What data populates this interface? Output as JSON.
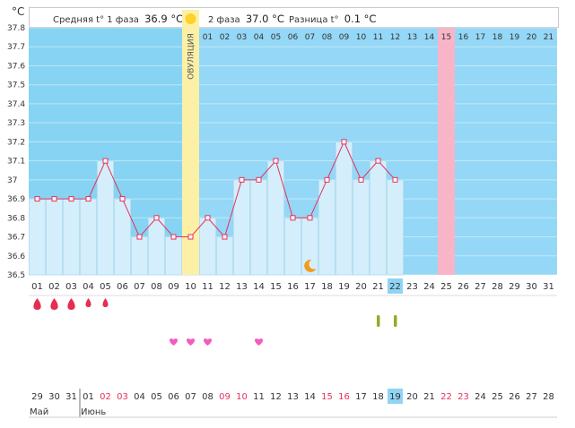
{
  "header": {
    "unit": "°C",
    "phase1_label": "Средняя t° 1 фаза",
    "phase1_value": "36.9 °C",
    "phase2_label": "2 фаза",
    "phase2_value": "37.0 °C",
    "diff_label": "Разница t°",
    "diff_value": "0.1 °C"
  },
  "chart_data": {
    "type": "line",
    "title": "",
    "ylabel": "°C",
    "ylim": [
      36.5,
      37.8
    ],
    "y_ticks": [
      "37.8",
      "37.7",
      "37.6",
      "37.5",
      "37.4",
      "37.3",
      "37.2",
      "37.1",
      "37",
      "36.9",
      "36.8",
      "36.7",
      "36.6",
      "36.5"
    ],
    "cycle_days": [
      "01",
      "02",
      "03",
      "04",
      "05",
      "06",
      "07",
      "08",
      "09",
      "10",
      "11",
      "12",
      "13",
      "14",
      "15",
      "16",
      "17",
      "18",
      "19",
      "20",
      "21",
      "22",
      "23",
      "24",
      "25",
      "26",
      "27",
      "28",
      "29",
      "30",
      "31"
    ],
    "top_days": [
      "01",
      "02",
      "03",
      "04",
      "05",
      "06",
      "07",
      "08",
      "09",
      "10",
      "11",
      "12",
      "13",
      "14",
      "15",
      "16",
      "17",
      "18",
      "19",
      "20",
      "21"
    ],
    "phase2_start_index": 10,
    "series": [
      {
        "name": "temperature",
        "values": [
          36.9,
          36.9,
          36.9,
          36.9,
          37.1,
          36.9,
          36.7,
          36.8,
          36.7,
          36.7,
          36.8,
          36.7,
          37.0,
          37.0,
          37.1,
          36.8,
          36.8,
          37.0,
          37.2,
          37.0,
          37.1,
          37.0
        ]
      }
    ],
    "ovulation_index": 9,
    "ovulation_label": "ОВУЛЯЦИЯ",
    "highlight_top_day_index": 14,
    "current_day_index": 21,
    "moon_index": 16,
    "menstruation": [
      {
        "index": 0,
        "size": "large"
      },
      {
        "index": 1,
        "size": "large"
      },
      {
        "index": 2,
        "size": "large"
      },
      {
        "index": 3,
        "size": "small"
      },
      {
        "index": 4,
        "size": "small"
      }
    ],
    "intercourse_indices": [
      8,
      9,
      10,
      13
    ],
    "test_indices": [
      20,
      21
    ]
  },
  "calendar": {
    "dates": [
      "29",
      "30",
      "31",
      "01",
      "02",
      "03",
      "04",
      "05",
      "06",
      "07",
      "08",
      "09",
      "10",
      "11",
      "12",
      "13",
      "14",
      "15",
      "16",
      "17",
      "18",
      "19",
      "20",
      "21",
      "22",
      "23",
      "24",
      "25",
      "26",
      "27",
      "28"
    ],
    "red_indices": [
      4,
      5,
      11,
      12,
      17,
      18,
      24,
      25
    ],
    "current_date_index": 21,
    "month_labels": [
      {
        "text": "Май",
        "index": 0
      },
      {
        "text": "Июнь",
        "index": 3
      }
    ]
  },
  "colors": {
    "phase1_bg": "#87d3f3",
    "phase2_bg": "#94d7f6",
    "bar_fill": "#d4eefb",
    "bar_stroke": "#b7dff1",
    "line": "#e5315d",
    "ovulation": "#fcf0a6",
    "highlight": "#f9b5c8",
    "label_blue": "#8fd4f5",
    "red_text": "#e5315d",
    "drop": "#e72d4d",
    "heart": "#f45cbf",
    "test": "#9aa72a",
    "moon": "#f39c18",
    "sun": "#fcd22b"
  }
}
